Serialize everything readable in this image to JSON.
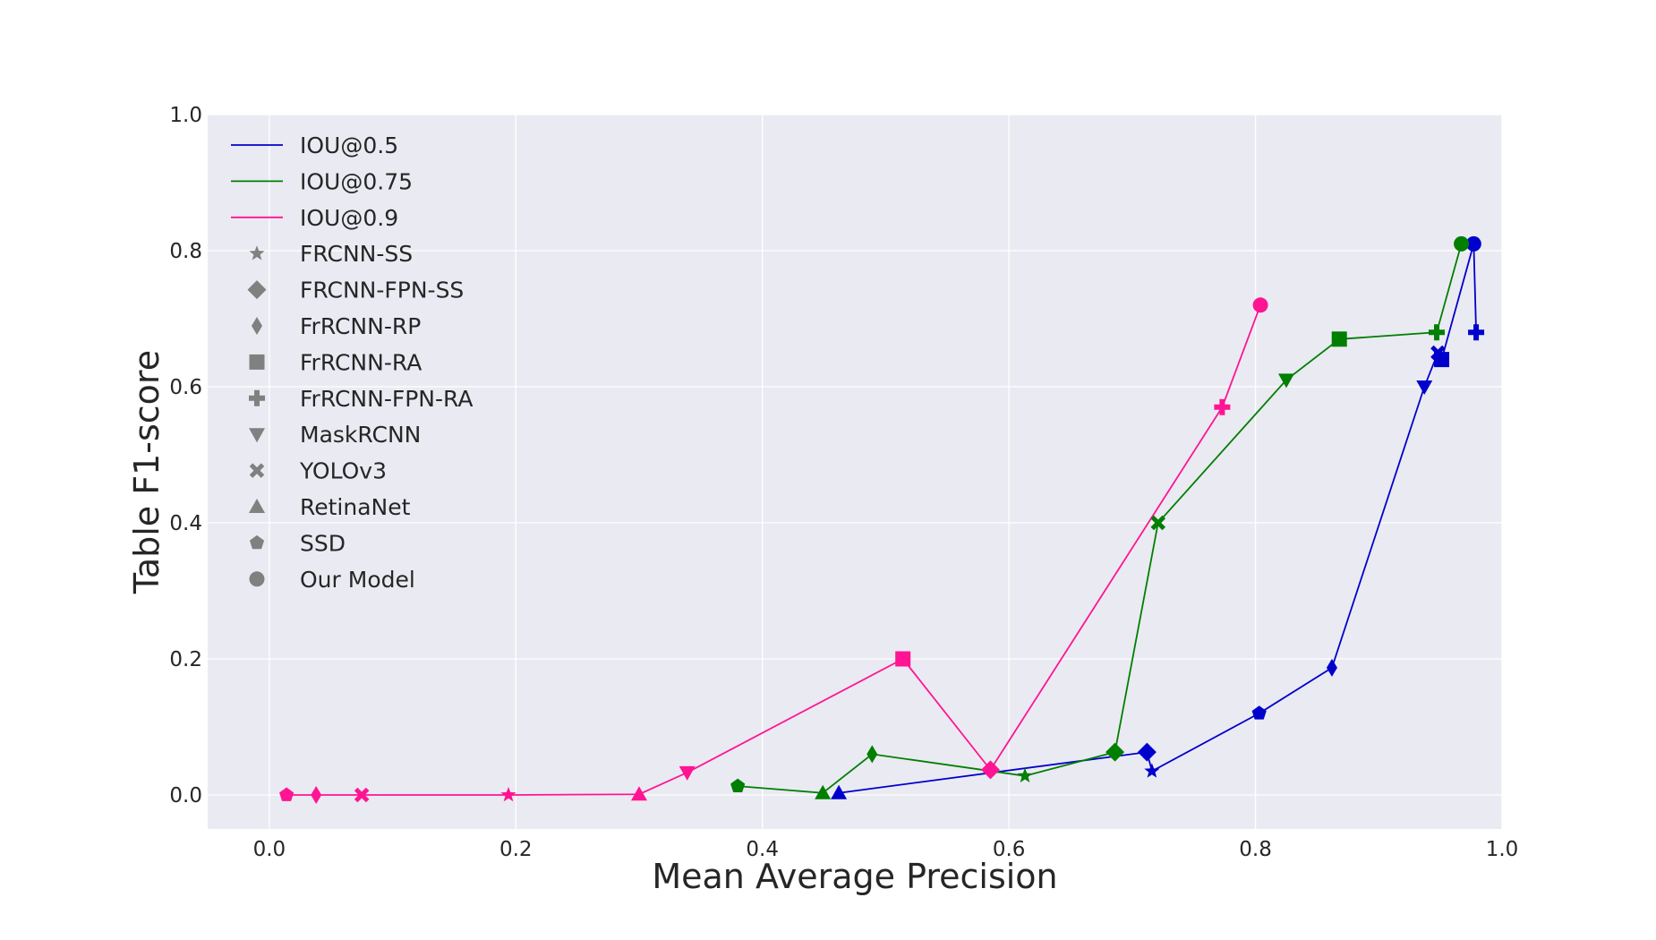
{
  "chart_data": {
    "type": "line",
    "title": "",
    "xlabel": "Mean Average Precision",
    "ylabel": "Table F1-score",
    "xlim": [
      -0.05,
      1.0
    ],
    "ylim": [
      -0.05,
      1.0
    ],
    "xticks": [
      0.0,
      0.2,
      0.4,
      0.6,
      0.8,
      1.0
    ],
    "yticks": [
      0.0,
      0.2,
      0.4,
      0.6,
      0.8,
      1.0
    ],
    "xtick_labels": [
      "0.0",
      "0.2",
      "0.4",
      "0.6",
      "0.8",
      "1.0"
    ],
    "ytick_labels": [
      "0.0",
      "0.2",
      "0.4",
      "0.6",
      "0.8",
      "1.0"
    ],
    "grid": true,
    "background": "#eaeaf2",
    "legend_position": "top-left",
    "series": [
      {
        "name": "IOU@0.5",
        "color": "#0000cc",
        "points": [
          {
            "model": "RetinaNet",
            "x": 0.462,
            "y": 0.003
          },
          {
            "model": "FRCNN-FPN-SS",
            "x": 0.712,
            "y": 0.063
          },
          {
            "model": "FRCNN-SS",
            "x": 0.716,
            "y": 0.035
          },
          {
            "model": "SSD",
            "x": 0.803,
            "y": 0.12
          },
          {
            "model": "FrRCNN-RP",
            "x": 0.862,
            "y": 0.187
          },
          {
            "model": "MaskRCNN",
            "x": 0.937,
            "y": 0.6
          },
          {
            "model": "YOLOv3",
            "x": 0.948,
            "y": 0.65
          },
          {
            "model": "FrRCNN-RA",
            "x": 0.951,
            "y": 0.64
          },
          {
            "model": "Our Model",
            "x": 0.977,
            "y": 0.81
          },
          {
            "model": "FrRCNN-FPN-RA",
            "x": 0.979,
            "y": 0.68
          }
        ]
      },
      {
        "name": "IOU@0.75",
        "color": "#007f00",
        "points": [
          {
            "model": "SSD",
            "x": 0.38,
            "y": 0.013
          },
          {
            "model": "RetinaNet",
            "x": 0.449,
            "y": 0.003
          },
          {
            "model": "FrRCNN-RP",
            "x": 0.489,
            "y": 0.06
          },
          {
            "model": "FRCNN-SS",
            "x": 0.613,
            "y": 0.028
          },
          {
            "model": "FRCNN-FPN-SS",
            "x": 0.686,
            "y": 0.063
          },
          {
            "model": "YOLOv3",
            "x": 0.721,
            "y": 0.4
          },
          {
            "model": "MaskRCNN",
            "x": 0.825,
            "y": 0.61
          },
          {
            "model": "FrRCNN-RA",
            "x": 0.868,
            "y": 0.67
          },
          {
            "model": "FrRCNN-FPN-RA",
            "x": 0.947,
            "y": 0.68
          },
          {
            "model": "Our Model",
            "x": 0.967,
            "y": 0.81
          }
        ]
      },
      {
        "name": "IOU@0.9",
        "color": "#ff1493",
        "points": [
          {
            "model": "SSD",
            "x": 0.014,
            "y": 0.0
          },
          {
            "model": "FrRCNN-RP",
            "x": 0.038,
            "y": 0.0
          },
          {
            "model": "YOLOv3",
            "x": 0.075,
            "y": 0.0
          },
          {
            "model": "FRCNN-SS",
            "x": 0.194,
            "y": 0.0
          },
          {
            "model": "RetinaNet",
            "x": 0.3,
            "y": 0.001
          },
          {
            "model": "MaskRCNN",
            "x": 0.339,
            "y": 0.033
          },
          {
            "model": "FrRCNN-RA",
            "x": 0.514,
            "y": 0.2
          },
          {
            "model": "FRCNN-FPN-SS",
            "x": 0.585,
            "y": 0.037
          },
          {
            "model": "FrRCNN-FPN-RA",
            "x": 0.773,
            "y": 0.57
          },
          {
            "model": "Our Model",
            "x": 0.804,
            "y": 0.72
          }
        ]
      }
    ],
    "marker_legend": [
      {
        "label": "FRCNN-SS",
        "marker": "star"
      },
      {
        "label": "FRCNN-FPN-SS",
        "marker": "diamond"
      },
      {
        "label": "FrRCNN-RP",
        "marker": "thin-diamond"
      },
      {
        "label": "FrRCNN-RA",
        "marker": "square"
      },
      {
        "label": "FrRCNN-FPN-RA",
        "marker": "plus"
      },
      {
        "label": "MaskRCNN",
        "marker": "triangle-down"
      },
      {
        "label": "YOLOv3",
        "marker": "x"
      },
      {
        "label": "RetinaNet",
        "marker": "triangle-up"
      },
      {
        "label": "SSD",
        "marker": "pentagon"
      },
      {
        "label": "Our Model",
        "marker": "circle"
      }
    ],
    "legend_marker_color": "#808080"
  }
}
